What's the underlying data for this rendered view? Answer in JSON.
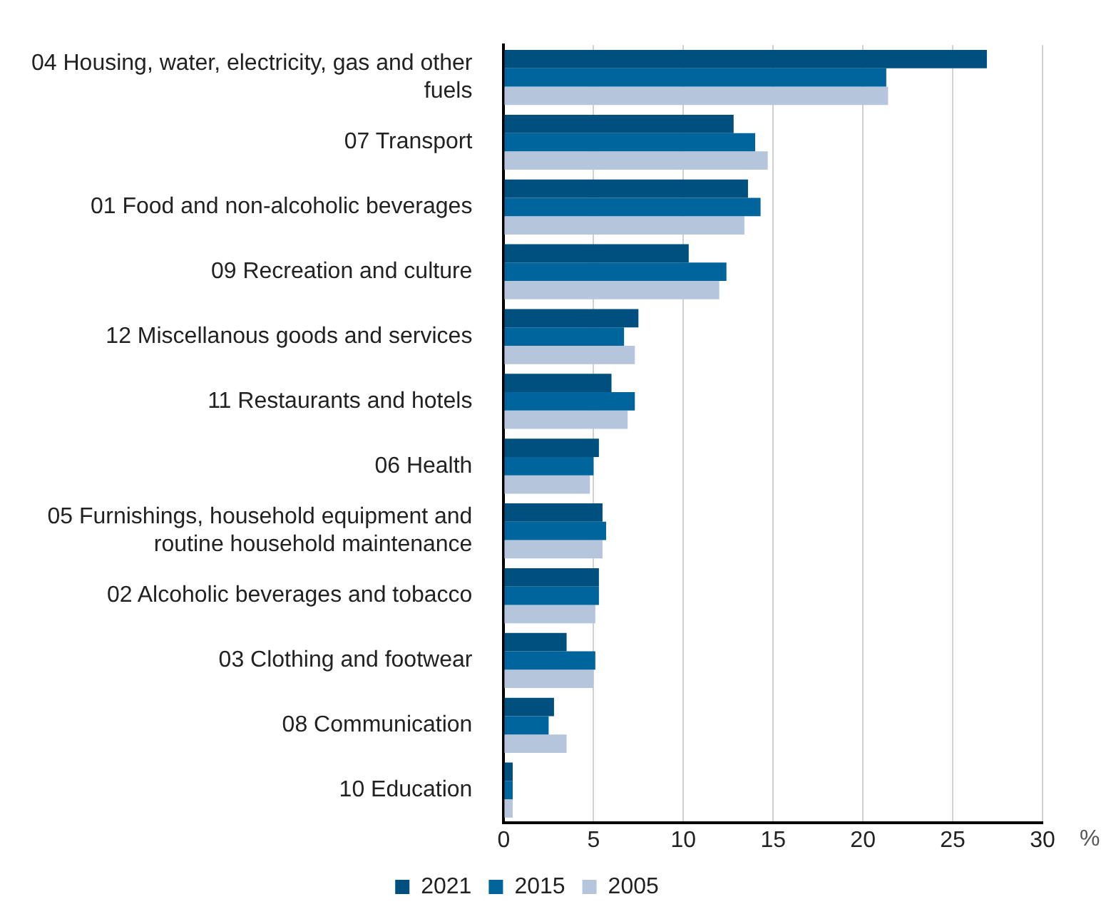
{
  "chart_data": {
    "type": "bar",
    "orientation": "horizontal",
    "xlabel": "%",
    "categories": [
      "04 Housing, water, electricity, gas and other fuels",
      "07 Transport",
      "01 Food and non-alcoholic beverages",
      "09 Recreation and culture",
      "12 Miscellanous goods and services",
      "11 Restaurants and hotels",
      "06 Health",
      "05 Furnishings, household equipment and routine household maintenance",
      "02 Alcoholic beverages and tobacco",
      "03 Clothing and footwear",
      "08 Communication",
      "10 Education"
    ],
    "series": [
      {
        "name": "2021",
        "color": "#00507f",
        "values": [
          26.9,
          12.8,
          13.6,
          10.3,
          7.5,
          6.0,
          5.3,
          5.5,
          5.3,
          3.5,
          2.8,
          0.5
        ]
      },
      {
        "name": "2015",
        "color": "#00659c",
        "values": [
          21.3,
          14.0,
          14.3,
          12.4,
          6.7,
          7.3,
          5.0,
          5.7,
          5.3,
          5.1,
          2.5,
          0.5
        ]
      },
      {
        "name": "2005",
        "color": "#b4c5dc",
        "values": [
          21.4,
          14.7,
          13.4,
          12.0,
          7.3,
          6.9,
          4.8,
          5.5,
          5.1,
          5.0,
          3.5,
          0.5
        ]
      }
    ],
    "xlim": [
      0,
      30
    ],
    "xticks": [
      0,
      5,
      10,
      15,
      20,
      25,
      30
    ],
    "grid": "x",
    "legend": "bottom"
  }
}
